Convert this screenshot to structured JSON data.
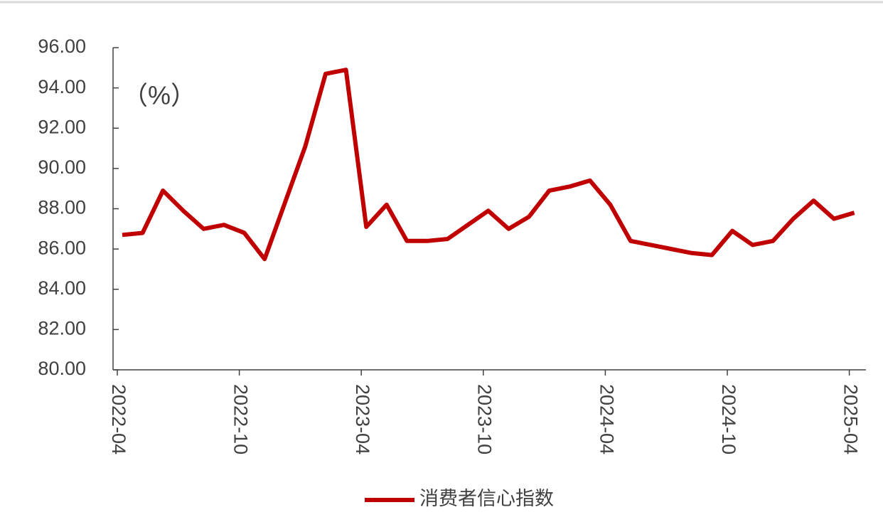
{
  "chart_data": {
    "type": "line",
    "annotation": "（%）",
    "categories": [
      "2022-04",
      null,
      null,
      null,
      null,
      null,
      "2022-10",
      null,
      null,
      null,
      null,
      null,
      "2023-04",
      null,
      null,
      null,
      null,
      null,
      "2023-10",
      null,
      null,
      null,
      null,
      null,
      "2024-04",
      null,
      null,
      null,
      null,
      null,
      "2024-10",
      null,
      null,
      null,
      null,
      null,
      "2025-04"
    ],
    "series": [
      {
        "name": "消费者信心指数",
        "color": "#c00000",
        "values": [
          86.7,
          86.8,
          88.9,
          87.9,
          87.0,
          87.2,
          86.8,
          85.5,
          88.3,
          91.1,
          94.7,
          94.9,
          87.1,
          88.2,
          86.4,
          86.4,
          86.5,
          87.2,
          87.9,
          87.0,
          87.6,
          88.9,
          89.1,
          89.4,
          88.2,
          86.4,
          86.2,
          86.0,
          85.8,
          85.7,
          86.9,
          86.2,
          86.4,
          87.5,
          88.4,
          87.5,
          87.8
        ]
      }
    ],
    "ylim": [
      80,
      96
    ],
    "yticks": [
      {
        "value": 80,
        "label": "80.00"
      },
      {
        "value": 82,
        "label": "82.00"
      },
      {
        "value": 84,
        "label": "84.00"
      },
      {
        "value": 86,
        "label": "86.00"
      },
      {
        "value": 88,
        "label": "88.00"
      },
      {
        "value": 90,
        "label": "90.00"
      },
      {
        "value": 92,
        "label": "92.00"
      },
      {
        "value": 94,
        "label": "94.00"
      },
      {
        "value": 96,
        "label": "96.00"
      }
    ],
    "grid": false,
    "legend": "bottom"
  }
}
